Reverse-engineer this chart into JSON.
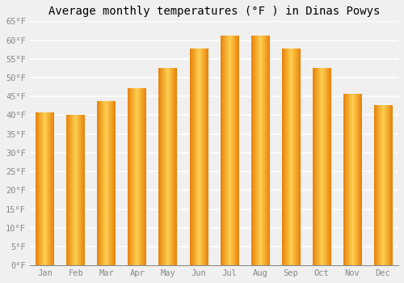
{
  "title": "Average monthly temperatures (°F ) in Dinas Powys",
  "months": [
    "Jan",
    "Feb",
    "Mar",
    "Apr",
    "May",
    "Jun",
    "Jul",
    "Aug",
    "Sep",
    "Oct",
    "Nov",
    "Dec"
  ],
  "values": [
    40.5,
    40.0,
    43.5,
    47.0,
    52.5,
    57.5,
    61.0,
    61.0,
    57.5,
    52.5,
    45.5,
    42.5
  ],
  "bar_color_left": "#E8820C",
  "bar_color_center": "#FFD050",
  "bar_color_right": "#E8820C",
  "ylim": [
    0,
    65
  ],
  "yticks": [
    0,
    5,
    10,
    15,
    20,
    25,
    30,
    35,
    40,
    45,
    50,
    55,
    60,
    65
  ],
  "ytick_labels": [
    "0°F",
    "5°F",
    "10°F",
    "15°F",
    "20°F",
    "25°F",
    "30°F",
    "35°F",
    "40°F",
    "45°F",
    "50°F",
    "55°F",
    "60°F",
    "65°F"
  ],
  "background_color": "#f0f0f0",
  "plot_background": "#f0f0f0",
  "grid_color": "#ffffff",
  "title_fontsize": 10,
  "tick_fontsize": 7.5,
  "font_family": "monospace",
  "bar_width": 0.6
}
